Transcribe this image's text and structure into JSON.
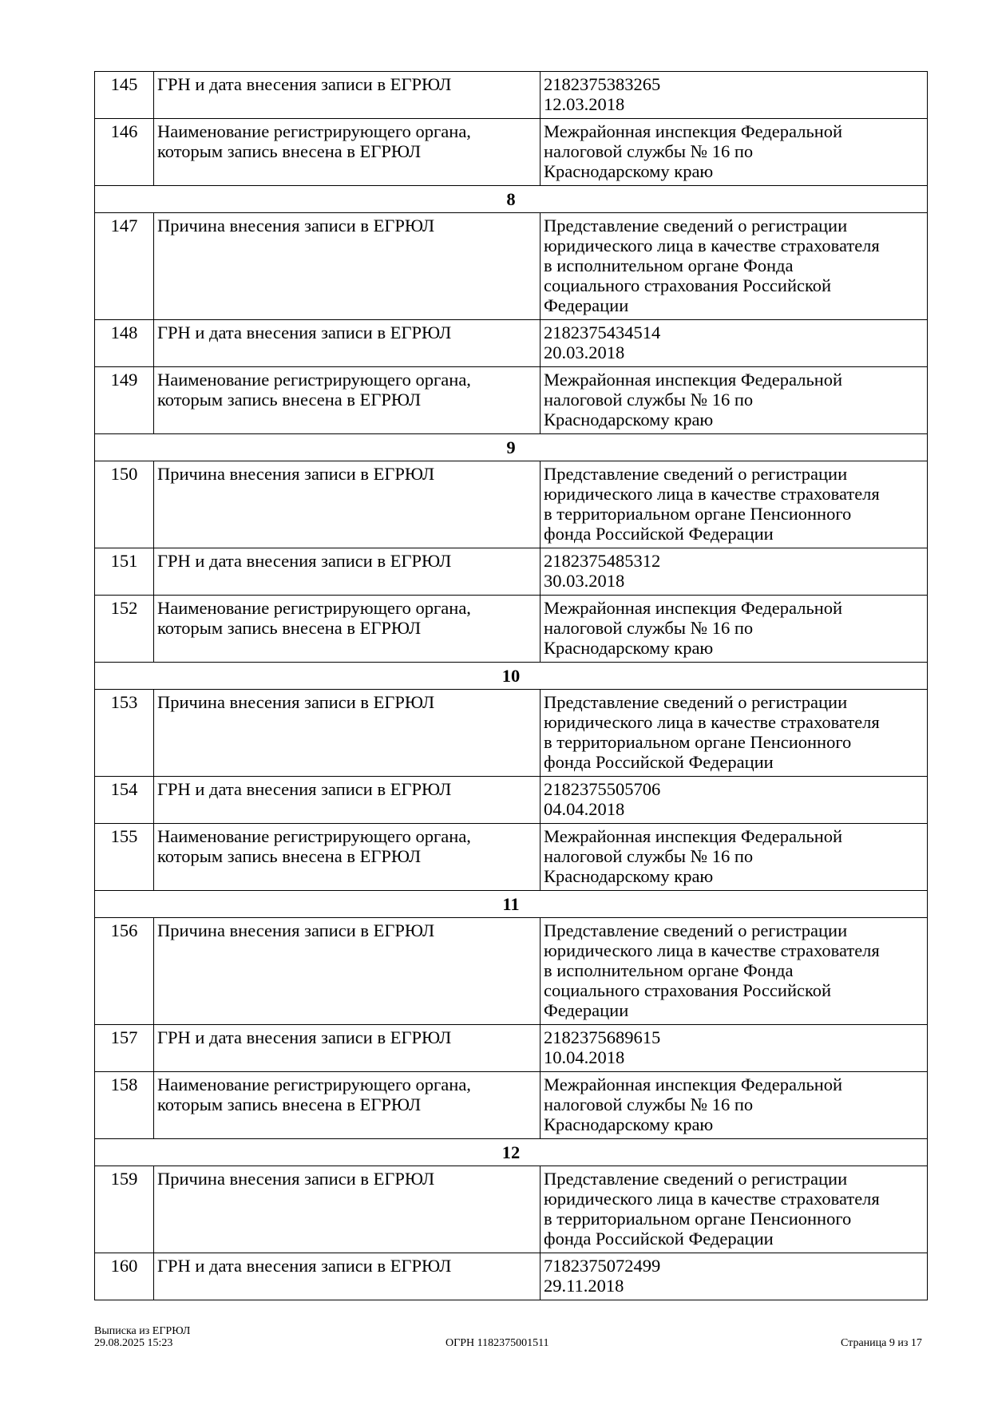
{
  "rows": [
    {
      "type": "row",
      "num": "145",
      "label": [
        "ГРН и дата внесения записи в ЕГРЮЛ"
      ],
      "value": [
        "2182375383265",
        "12.03.2018"
      ]
    },
    {
      "type": "row",
      "num": "146",
      "label": [
        "Наименование регистрирующего органа,",
        "которым запись внесена в ЕГРЮЛ"
      ],
      "value": [
        "Межрайонная инспекция Федеральной",
        "налоговой службы № 16 по",
        "Краснодарскому краю"
      ]
    },
    {
      "type": "section",
      "num": "8"
    },
    {
      "type": "row",
      "num": "147",
      "label": [
        "Причина внесения записи в ЕГРЮЛ"
      ],
      "value": [
        "Представление сведений о регистрации",
        "юридического лица в качестве страхователя",
        "в исполнительном органе Фонда",
        "социального страхования Российской",
        "Федерации"
      ]
    },
    {
      "type": "row",
      "num": "148",
      "label": [
        "ГРН и дата внесения записи в ЕГРЮЛ"
      ],
      "value": [
        "2182375434514",
        "20.03.2018"
      ]
    },
    {
      "type": "row",
      "num": "149",
      "label": [
        "Наименование регистрирующего органа,",
        "которым запись внесена в ЕГРЮЛ"
      ],
      "value": [
        "Межрайонная инспекция Федеральной",
        "налоговой службы № 16 по",
        "Краснодарскому краю"
      ]
    },
    {
      "type": "section",
      "num": "9"
    },
    {
      "type": "row",
      "num": "150",
      "label": [
        "Причина внесения записи в ЕГРЮЛ"
      ],
      "value": [
        "Представление сведений о регистрации",
        "юридического лица в качестве страхователя",
        "в территориальном органе Пенсионного",
        "фонда Российской Федерации"
      ]
    },
    {
      "type": "row",
      "num": "151",
      "label": [
        "ГРН и дата внесения записи в ЕГРЮЛ"
      ],
      "value": [
        "2182375485312",
        "30.03.2018"
      ]
    },
    {
      "type": "row",
      "num": "152",
      "label": [
        "Наименование регистрирующего органа,",
        "которым запись внесена в ЕГРЮЛ"
      ],
      "value": [
        "Межрайонная инспекция Федеральной",
        "налоговой службы № 16 по",
        "Краснодарскому краю"
      ]
    },
    {
      "type": "section",
      "num": "10"
    },
    {
      "type": "row",
      "num": "153",
      "label": [
        "Причина внесения записи в ЕГРЮЛ"
      ],
      "value": [
        "Представление сведений о регистрации",
        "юридического лица в качестве страхователя",
        "в территориальном органе Пенсионного",
        "фонда Российской Федерации"
      ]
    },
    {
      "type": "row",
      "num": "154",
      "label": [
        "ГРН и дата внесения записи в ЕГРЮЛ"
      ],
      "value": [
        "2182375505706",
        "04.04.2018"
      ]
    },
    {
      "type": "row",
      "num": "155",
      "label": [
        "Наименование регистрирующего органа,",
        "которым запись внесена в ЕГРЮЛ"
      ],
      "value": [
        "Межрайонная инспекция Федеральной",
        "налоговой службы № 16 по",
        "Краснодарскому краю"
      ]
    },
    {
      "type": "section",
      "num": "11"
    },
    {
      "type": "row",
      "num": "156",
      "label": [
        "Причина внесения записи в ЕГРЮЛ"
      ],
      "value": [
        "Представление сведений о регистрации",
        "юридического лица в качестве страхователя",
        "в исполнительном органе Фонда",
        "социального страхования Российской",
        "Федерации"
      ]
    },
    {
      "type": "row",
      "num": "157",
      "label": [
        "ГРН и дата внесения записи в ЕГРЮЛ"
      ],
      "value": [
        "2182375689615",
        "10.04.2018"
      ]
    },
    {
      "type": "row",
      "num": "158",
      "label": [
        "Наименование регистрирующего органа,",
        "которым запись внесена в ЕГРЮЛ"
      ],
      "value": [
        "Межрайонная инспекция Федеральной",
        "налоговой службы № 16 по",
        "Краснодарскому краю"
      ]
    },
    {
      "type": "section",
      "num": "12"
    },
    {
      "type": "row",
      "num": "159",
      "label": [
        "Причина внесения записи в ЕГРЮЛ"
      ],
      "value": [
        "Представление сведений о регистрации",
        "юридического лица в качестве страхователя",
        "в территориальном органе Пенсионного",
        "фонда Российской Федерации"
      ]
    },
    {
      "type": "row",
      "num": "160",
      "label": [
        "ГРН и дата внесения записи в ЕГРЮЛ"
      ],
      "value": [
        "7182375072499",
        "29.11.2018"
      ]
    }
  ],
  "footer": {
    "title": "Выписка из ЕГРЮЛ",
    "datetime": "29.08.2025 15:23",
    "ogrn": "ОГРН 1182375001511",
    "page": "Страница 9 из 17"
  }
}
